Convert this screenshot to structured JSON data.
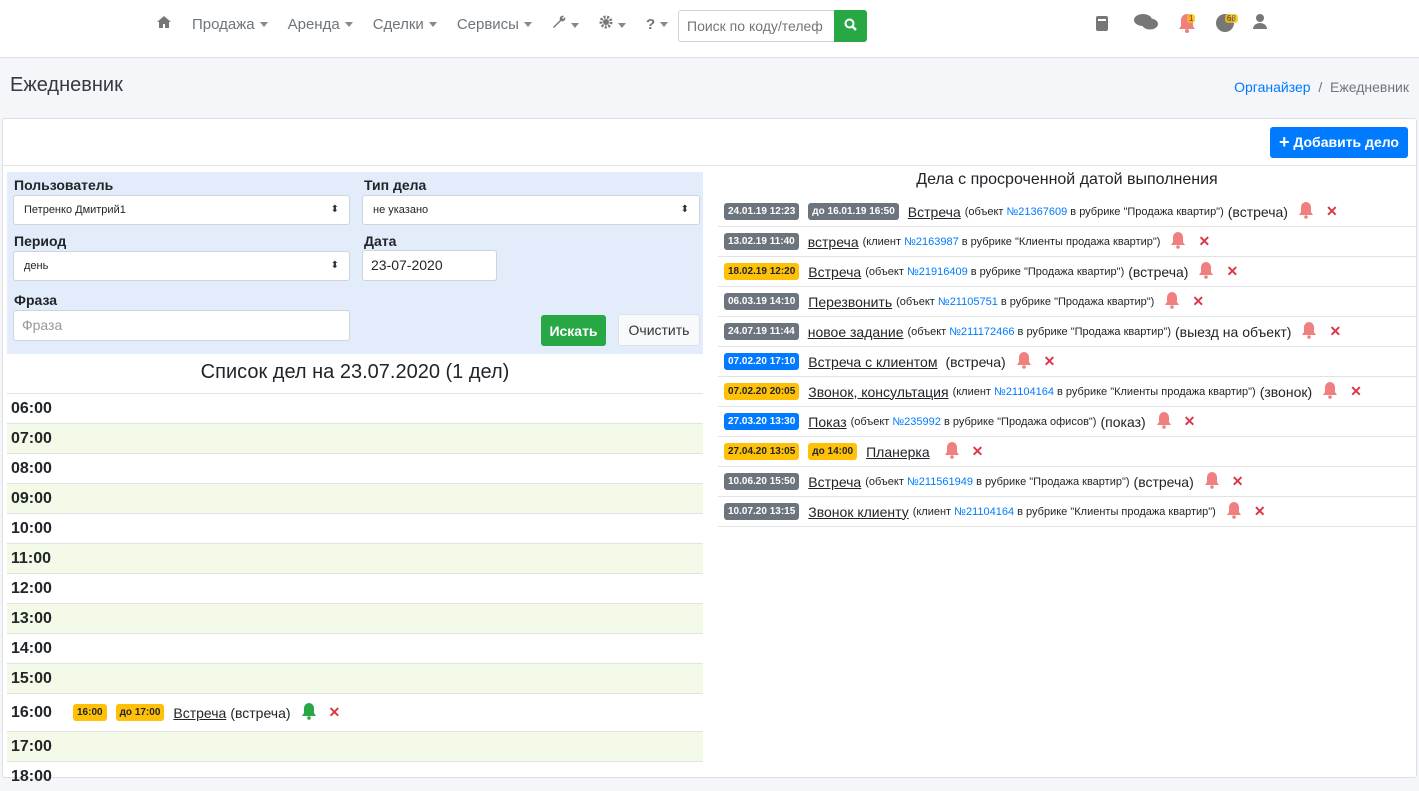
{
  "nav": {
    "home_icon": "home-icon",
    "menu": [
      "Продажа",
      "Аренда",
      "Сделки",
      "Сервисы"
    ],
    "tools_icon": "wrench-icon",
    "settings_icon": "gear-icon",
    "help_label": "?",
    "search_placeholder": "Поиск по коду/телеф",
    "notifications_count": "1",
    "tasks_count": "68"
  },
  "page": {
    "title": "Ежедневник",
    "breadcrumb": [
      "Органайзер",
      "Ежедневник"
    ]
  },
  "toolbar": {
    "add_label": "Добавить дело"
  },
  "filters": {
    "user_label": "Пользователь",
    "user_value": "Петренко Дмитрий1",
    "type_label": "Тип дела",
    "type_value": "не указано",
    "period_label": "Период",
    "period_value": "день",
    "date_label": "Дата",
    "date_value": "23-07-2020",
    "phrase_label": "Фраза",
    "phrase_placeholder": "Фраза",
    "search_label": "Искать",
    "clear_label": "Очистить"
  },
  "schedule": {
    "title": "Список дел на 23.07.2020 (1 дел)",
    "hours": [
      {
        "time": "06:00"
      },
      {
        "time": "07:00"
      },
      {
        "time": "08:00"
      },
      {
        "time": "09:00"
      },
      {
        "time": "10:00"
      },
      {
        "time": "11:00"
      },
      {
        "time": "12:00"
      },
      {
        "time": "13:00"
      },
      {
        "time": "14:00"
      },
      {
        "time": "15:00"
      },
      {
        "time": "16:00",
        "task": {
          "start": "16:00",
          "until": "до 17:00",
          "title": "Встреча",
          "kind": "(встреча)",
          "bell_color": "#28a745"
        }
      },
      {
        "time": "17:00"
      },
      {
        "time": "18:00"
      }
    ]
  },
  "overdue": {
    "title": "Дела с просроченной датой выполнения",
    "items": [
      {
        "date": "24.01.19 12:23",
        "color": "gray",
        "until": "до 16.01.19 16:50",
        "until_color": "gray",
        "title": "Встреча",
        "ref_pre": "(объект ",
        "ref": "№21367609",
        "ref_post": " в рубрике \"Продажа квартир\")",
        "kind": "(встреча)"
      },
      {
        "date": "13.02.19 11:40",
        "color": "gray",
        "title": "встреча",
        "ref_pre": "(клиент ",
        "ref": "№2163987",
        "ref_post": " в рубрике \"Клиенты продажа квартир\")"
      },
      {
        "date": "18.02.19 12:20",
        "color": "yel",
        "title": "Встреча",
        "ref_pre": "(объект ",
        "ref": "№21916409",
        "ref_post": " в рубрике \"Продажа квартир\")",
        "kind": "(встреча)"
      },
      {
        "date": "06.03.19 14:10",
        "color": "gray",
        "title": "Перезвонить",
        "ref_pre": "(объект ",
        "ref": "№21105751",
        "ref_post": " в рубрике \"Продажа квартир\")"
      },
      {
        "date": "24.07.19 11:44",
        "color": "gray",
        "title": "новое задание",
        "ref_pre": "(объект ",
        "ref": "№211172466",
        "ref_post": " в рубрике \"Продажа квартир\")",
        "kind": "(выезд на объект)"
      },
      {
        "date": "07.02.20 17:10",
        "color": "blue",
        "title": "Встреча с клиентом",
        "kind": "(встреча)"
      },
      {
        "date": "07.02.20 20:05",
        "color": "yel",
        "title": "Звонок, консультация",
        "ref_pre": "(клиент ",
        "ref": "№21104164",
        "ref_post": " в рубрике \"Клиенты продажа квартир\")",
        "kind": "(звонок)"
      },
      {
        "date": "27.03.20 13:30",
        "color": "blue",
        "title": "Показ",
        "ref_pre": "(объект ",
        "ref": "№235992",
        "ref_post": " в рубрике \"Продажа офисов\")",
        "kind": "(показ)"
      },
      {
        "date": "27.04.20 13:05",
        "color": "yel",
        "until": "до 14:00",
        "until_color": "yel",
        "title": "Планерка"
      },
      {
        "date": "10.06.20 15:50",
        "color": "gray",
        "title": "Встреча",
        "ref_pre": "(объект ",
        "ref": "№211561949",
        "ref_post": " в рубрике \"Продажа квартир\")",
        "kind": "(встреча)"
      },
      {
        "date": "10.07.20 13:15",
        "color": "gray",
        "title": "Звонок клиенту",
        "ref_pre": "(клиент ",
        "ref": "№21104164",
        "ref_post": " в рубрике \"Клиенты продажа квартир\")"
      }
    ]
  },
  "colors": {
    "primary": "#007bff",
    "success": "#28a745",
    "warning": "#ffc107",
    "secondary": "#6c757d",
    "danger": "#dc3545",
    "bell_overdue": "#f08080"
  }
}
